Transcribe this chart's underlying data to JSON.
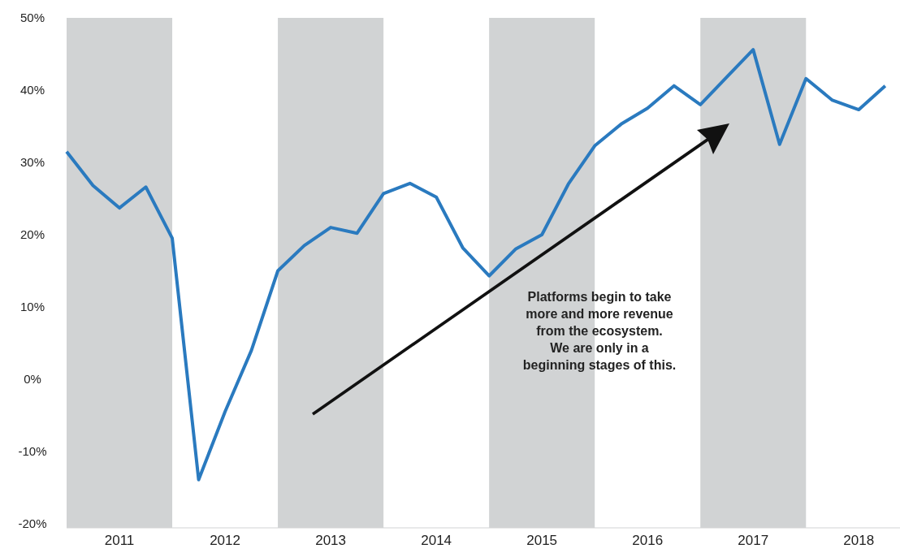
{
  "chart_data": {
    "type": "line",
    "x": [
      2011,
      2011.25,
      2011.5,
      2011.75,
      2012,
      2012.25,
      2012.5,
      2012.75,
      2013,
      2013.25,
      2013.5,
      2013.75,
      2014,
      2014.25,
      2014.5,
      2014.75,
      2015,
      2015.25,
      2015.5,
      2015.75,
      2016,
      2016.25,
      2016.5,
      2016.75,
      2017,
      2017.25,
      2017.5,
      2017.75,
      2018,
      2018.25,
      2018.5,
      2018.75
    ],
    "series": [
      {
        "color": "#2a7abf",
        "values": [
          31.5,
          26.8,
          23.7,
          26.6,
          19.5,
          -13.9,
          -4.5,
          4,
          15,
          18.5,
          21,
          20.2,
          25.7,
          27.1,
          25.2,
          18.2,
          14.3,
          18,
          20,
          27,
          32.3,
          35.3,
          37.5,
          40.6,
          38,
          41.8,
          45.6,
          32.5,
          41.6,
          38.6,
          37.3,
          40.6
        ]
      }
    ],
    "xticks": [
      {
        "value": 2011.5,
        "label": "2011"
      },
      {
        "value": 2012.5,
        "label": "2012"
      },
      {
        "value": 2013.5,
        "label": "2013"
      },
      {
        "value": 2014.5,
        "label": "2014"
      },
      {
        "value": 2015.5,
        "label": "2015"
      },
      {
        "value": 2016.5,
        "label": "2016"
      },
      {
        "value": 2017.5,
        "label": "2017"
      },
      {
        "value": 2018.5,
        "label": "2018"
      }
    ],
    "xlim": [
      2011,
      2018.89
    ],
    "ylim": [
      -20,
      50
    ],
    "yticks": [
      {
        "value": -20,
        "label": "-20%"
      },
      {
        "value": -10,
        "label": "-10%"
      },
      {
        "value": 0,
        "label": "0%"
      },
      {
        "value": 10,
        "label": "10%"
      },
      {
        "value": 20,
        "label": "20%"
      },
      {
        "value": 30,
        "label": "30%"
      },
      {
        "value": 40,
        "label": "40%"
      },
      {
        "value": 50,
        "label": "50%"
      }
    ],
    "bands": [
      {
        "axis": "x",
        "from": 2011,
        "to": 2012,
        "color": "#d1d3d4"
      },
      {
        "axis": "x",
        "from": 2013,
        "to": 2014,
        "color": "#d1d3d4"
      },
      {
        "axis": "x",
        "from": 2015,
        "to": 2016,
        "color": "#d1d3d4"
      },
      {
        "axis": "x",
        "from": 2017,
        "to": 2018,
        "color": "#d1d3d4"
      }
    ],
    "annotations": [
      "Platforms begin to take more and more revenue from the ecosystem. We are only in a beginning stages of this."
    ],
    "grid": false,
    "marker": "none",
    "line_style": "solid"
  }
}
